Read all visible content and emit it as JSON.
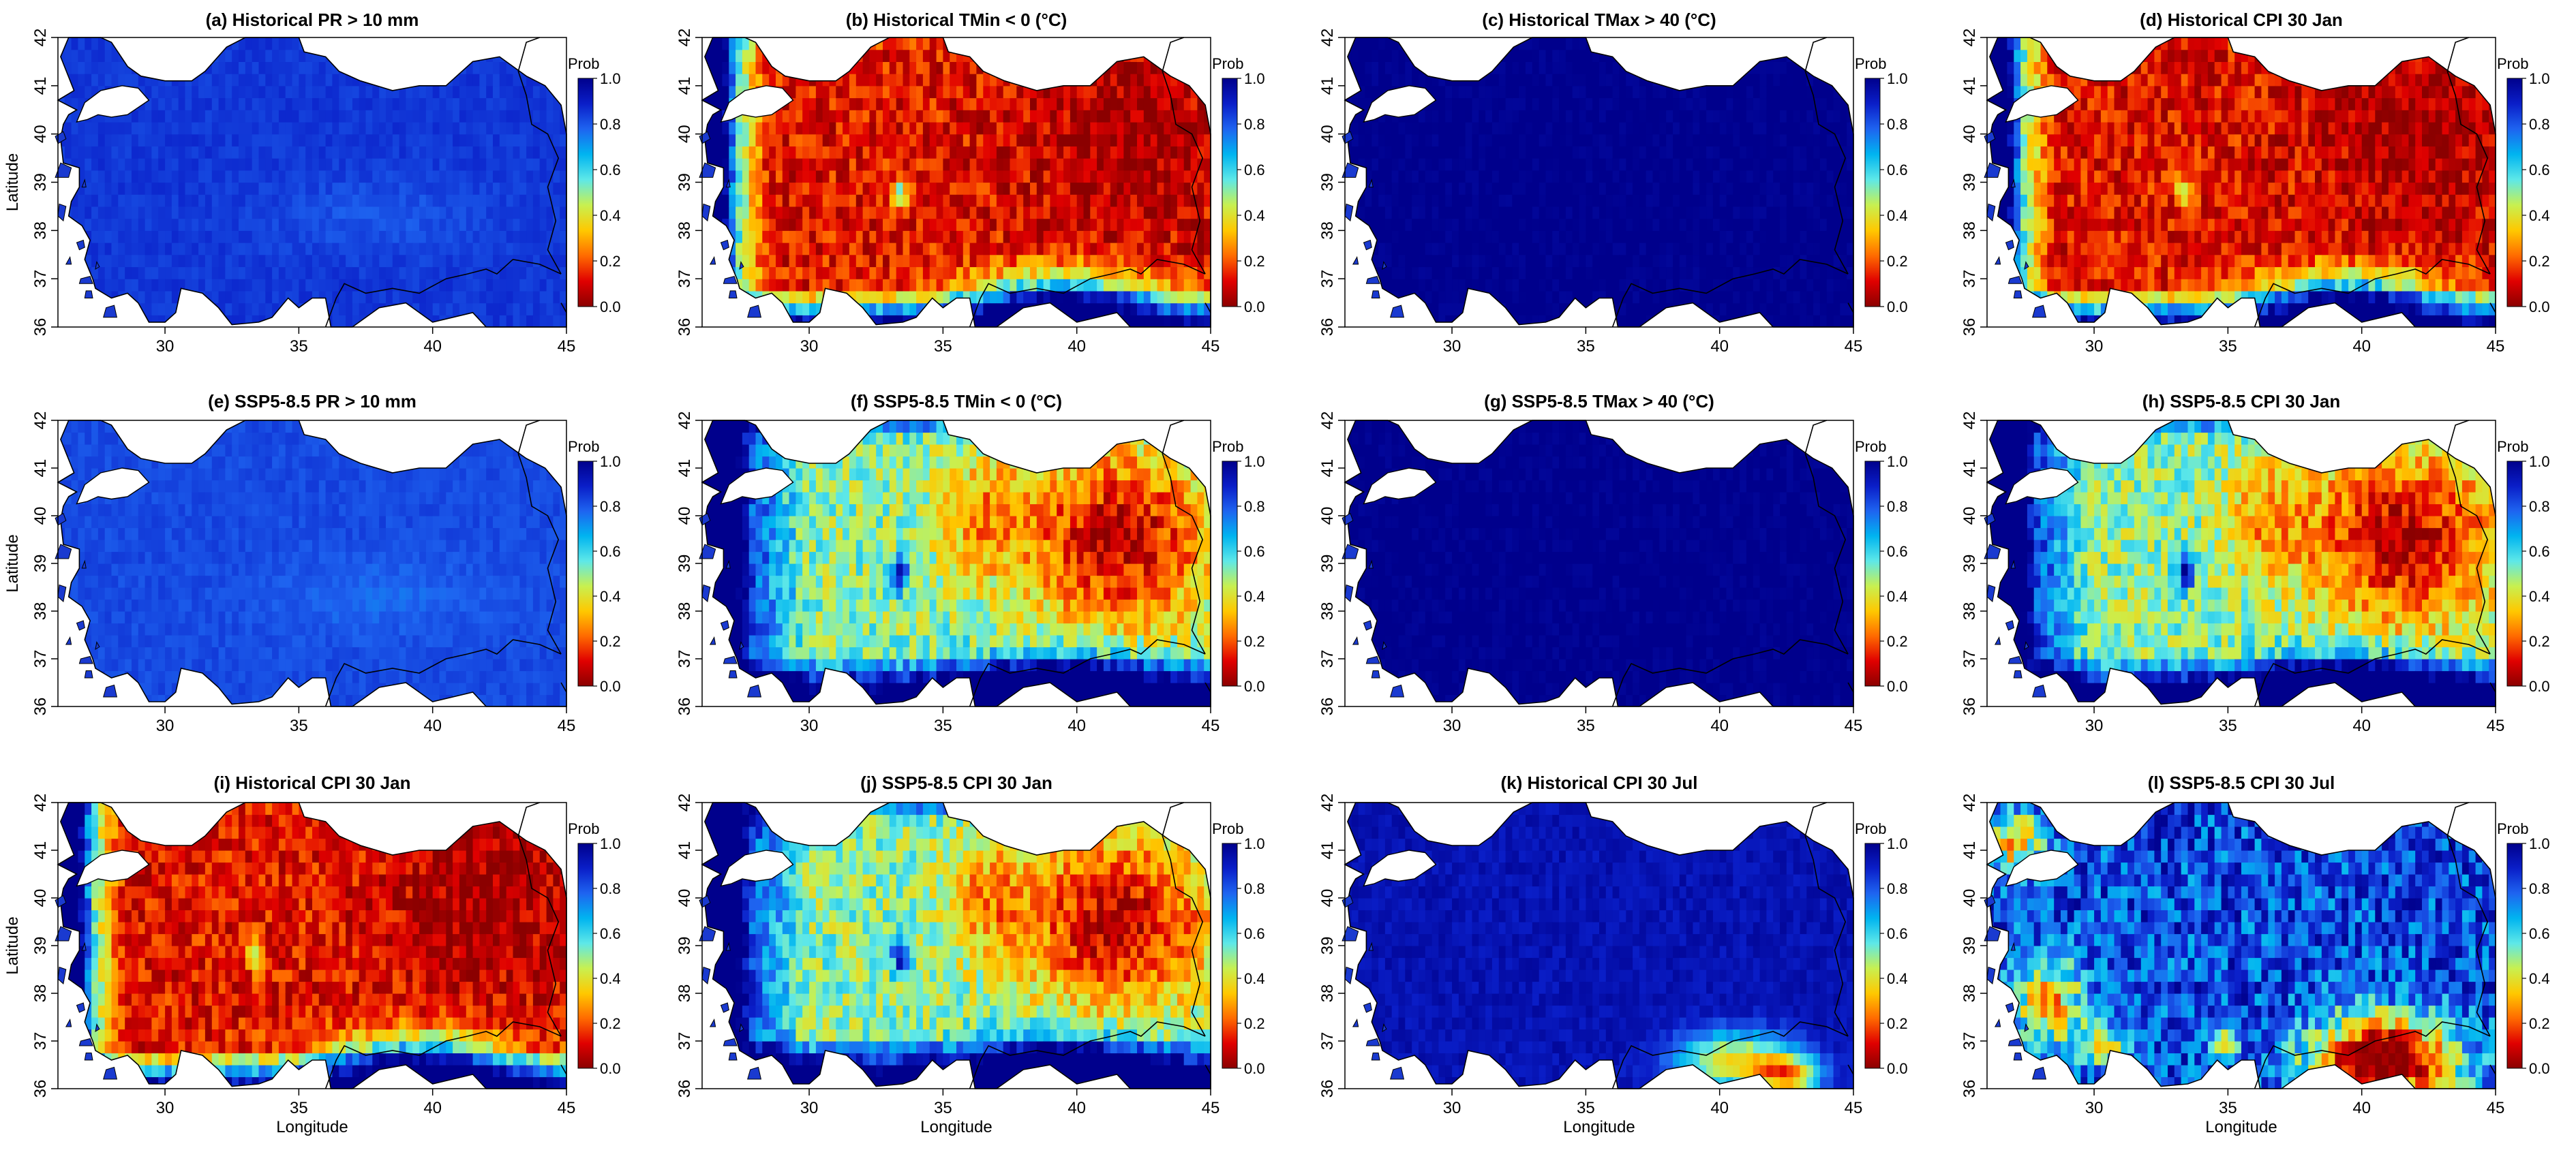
{
  "figure": {
    "colorbar_label": "Prob",
    "colorbar_ticks": [
      "1.0",
      "0.8",
      "0.6",
      "0.4",
      "0.2",
      "0.0"
    ],
    "colorbar_range": [
      0,
      1
    ],
    "colormap": [
      "#8b0000",
      "#e00000",
      "#ff6a00",
      "#ffc800",
      "#c8f050",
      "#5ee8e8",
      "#00b4f0",
      "#1e64f0",
      "#0a1ec8",
      "#00008c"
    ],
    "lat_ticks": [
      "36",
      "37",
      "38",
      "39",
      "40",
      "41",
      "42"
    ],
    "lon_ticks": [
      "30",
      "35",
      "40",
      "45"
    ],
    "lat_range": [
      36,
      42
    ],
    "lon_range": [
      26,
      45
    ],
    "ylabel": "Latitude",
    "xlabel": "Longitude",
    "land_colors": {
      "sea": "#ffffff",
      "coast": "#000000",
      "border": "#000000"
    },
    "panels": [
      {
        "title": "(a) Historical PR > 10 mm",
        "pattern": "uniform",
        "base": 0.85,
        "show_ylabel": true,
        "show_xlabel": false
      },
      {
        "title": "(b) Historical TMin < 0 (°C)",
        "pattern": "tmin_hist",
        "base": 0.1,
        "show_ylabel": false,
        "show_xlabel": false
      },
      {
        "title": "(c) Historical TMax > 40 (°C)",
        "pattern": "uniform",
        "base": 1.0,
        "show_ylabel": false,
        "show_xlabel": false
      },
      {
        "title": "(d) Historical CPI 30 Jan",
        "pattern": "tmin_hist",
        "base": 0.1,
        "show_ylabel": false,
        "show_xlabel": false
      },
      {
        "title": "(e) SSP5-8.5 PR > 10 mm",
        "pattern": "uniform",
        "base": 0.82,
        "show_ylabel": true,
        "show_xlabel": false
      },
      {
        "title": "(f) SSP5-8.5 TMin < 0 (°C)",
        "pattern": "tmin_ssp",
        "base": 0.4,
        "show_ylabel": false,
        "show_xlabel": false
      },
      {
        "title": "(g) SSP5-8.5 TMax > 40 (°C)",
        "pattern": "uniform",
        "base": 1.0,
        "show_ylabel": false,
        "show_xlabel": false
      },
      {
        "title": "(h)  SSP5-8.5 CPI 30 Jan",
        "pattern": "tmin_ssp",
        "base": 0.4,
        "show_ylabel": false,
        "show_xlabel": false
      },
      {
        "title": "(i) Historical CPI 30 Jan",
        "pattern": "tmin_hist",
        "base": 0.1,
        "show_ylabel": true,
        "show_xlabel": true
      },
      {
        "title": "(j) SSP5-8.5 CPI 30 Jan",
        "pattern": "tmin_ssp",
        "base": 0.4,
        "show_ylabel": false,
        "show_xlabel": true
      },
      {
        "title": "(k) Historical CPI 30 Jul",
        "pattern": "jul_hist",
        "base": 0.95,
        "show_ylabel": false,
        "show_xlabel": true
      },
      {
        "title": "(l) SSP5-8.5 CPI 30 Jul",
        "pattern": "jul_ssp",
        "base": 0.8,
        "show_ylabel": false,
        "show_xlabel": true
      }
    ]
  }
}
